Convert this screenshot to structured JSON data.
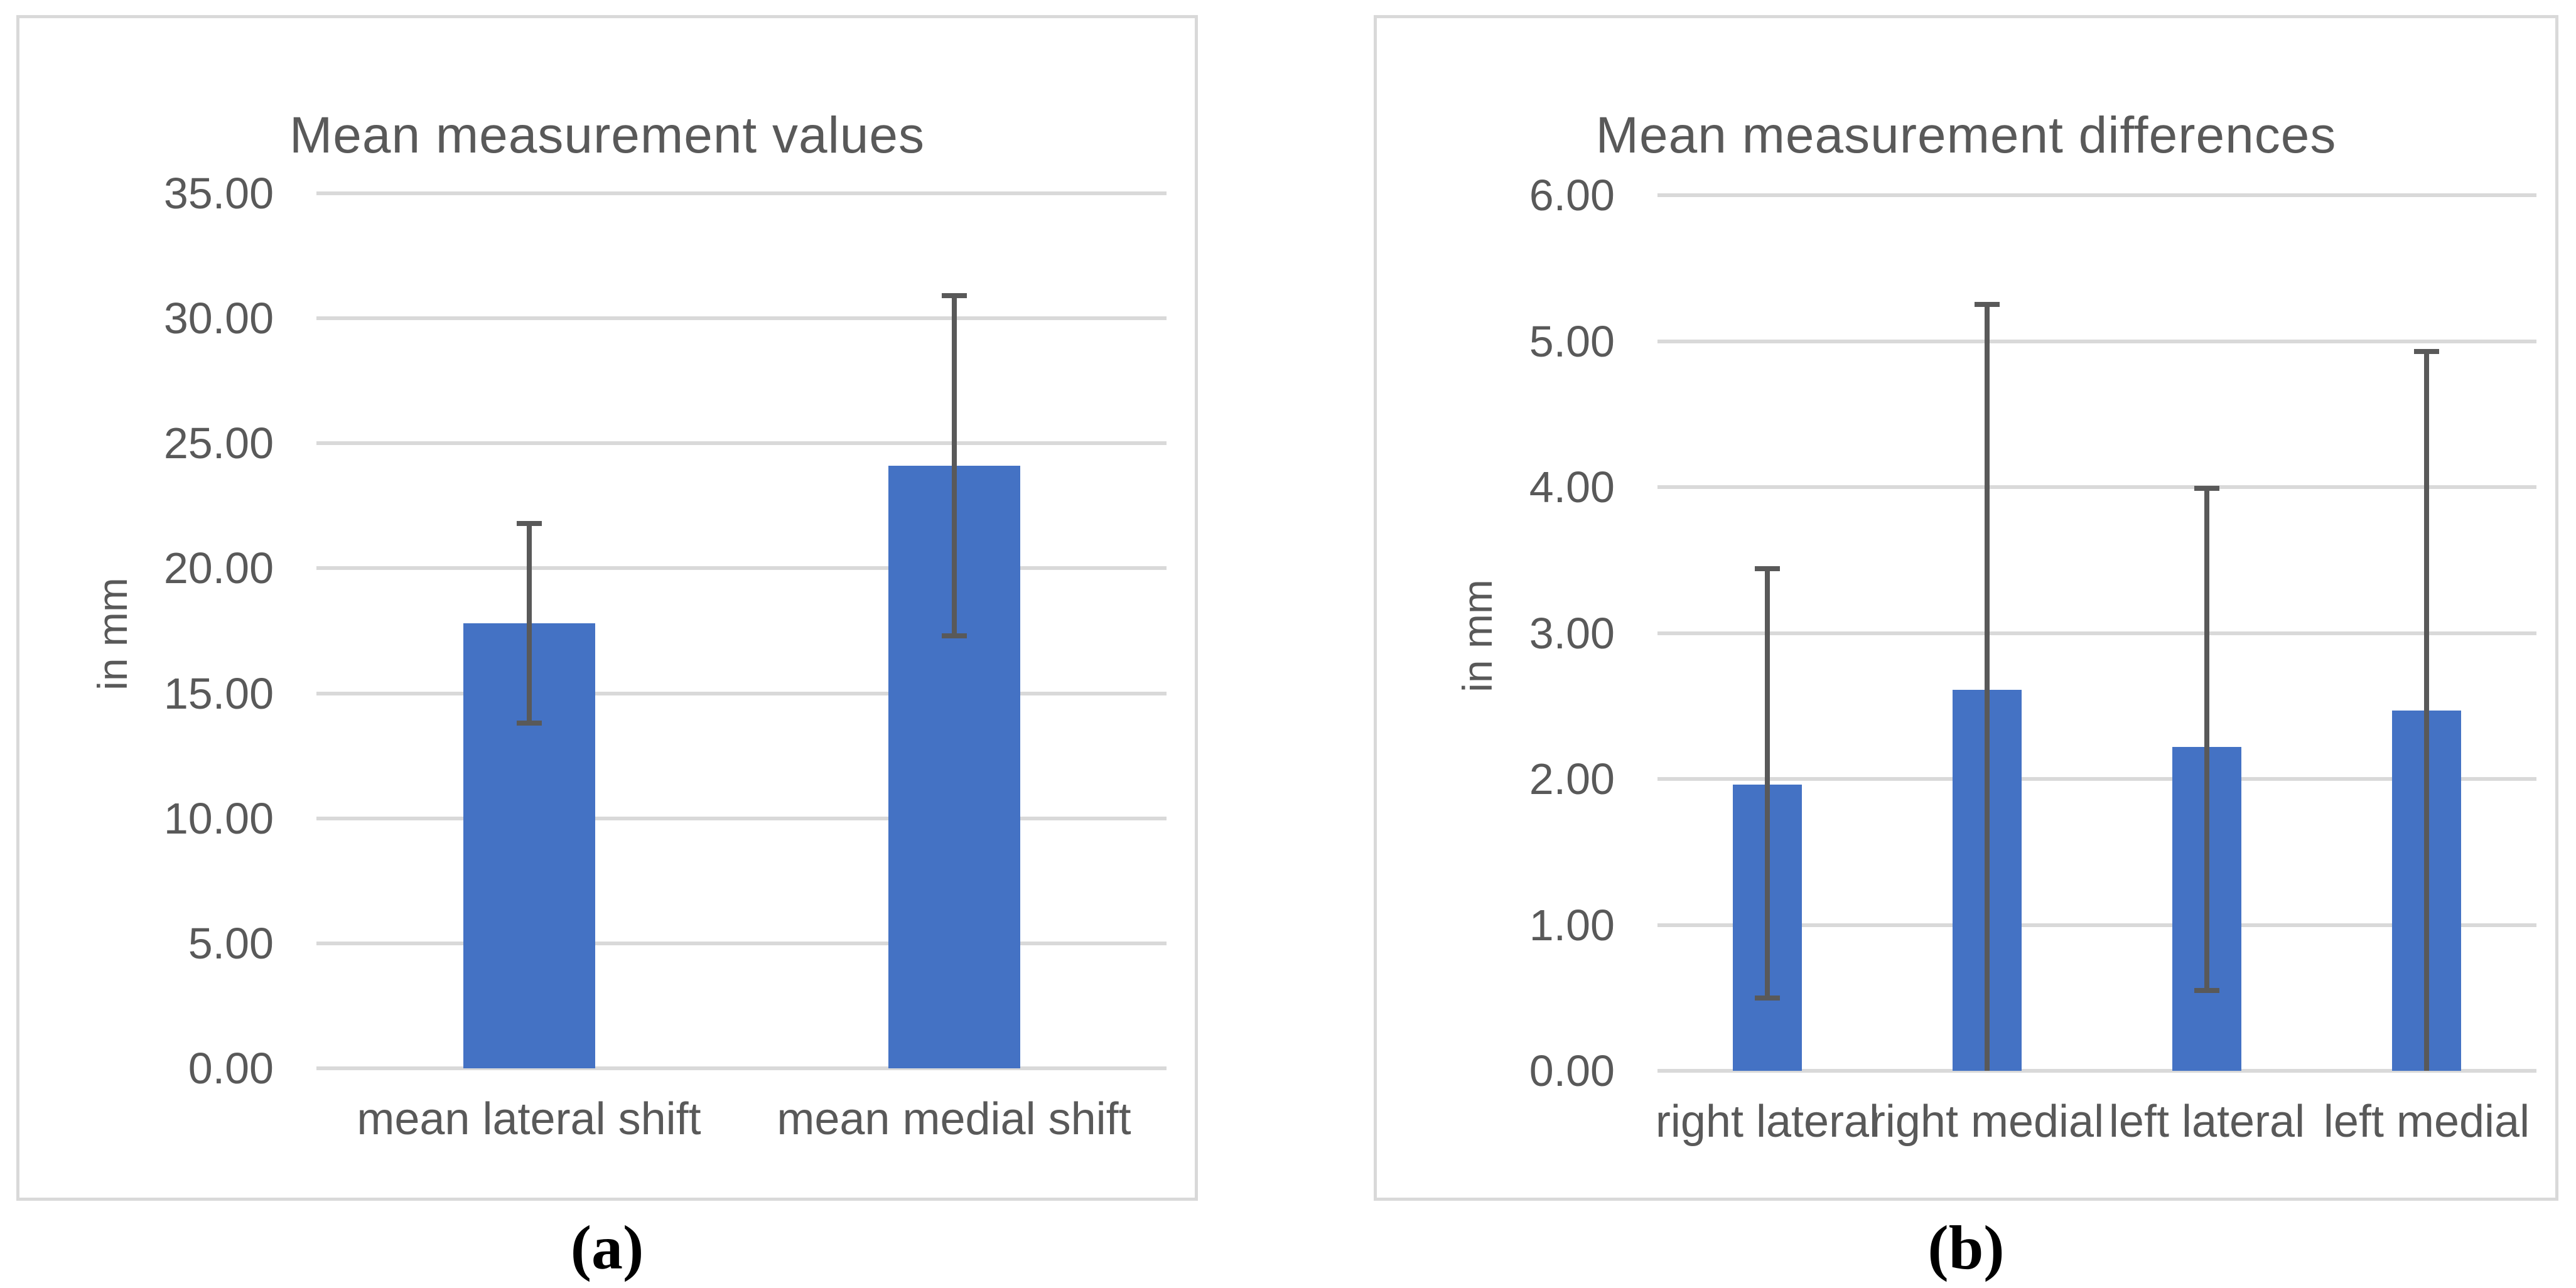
{
  "captions": {
    "a": "(a)",
    "b": "(b)"
  },
  "colors": {
    "bar_fill": "#4472C4",
    "error_bar": "#595959",
    "gridline": "#D9D9D9",
    "panel_border": "#D9D9D9",
    "axis_text": "#595959",
    "caption_text": "#000000"
  },
  "chart_data": [
    {
      "type": "bar",
      "title": "Mean measurement values",
      "xlabel": "",
      "ylabel": "in mm",
      "ylim": [
        0,
        35
      ],
      "yticks": [
        "0.00",
        "5.00",
        "10.00",
        "15.00",
        "20.00",
        "25.00",
        "30.00",
        "35.00"
      ],
      "grid": true,
      "legend": "none",
      "categories": [
        "mean lateral shift",
        "mean medial shift"
      ],
      "values": [
        17.8,
        24.1
      ],
      "error_low": [
        13.8,
        17.3
      ],
      "error_high": [
        21.8,
        30.9
      ],
      "bar_color": "#4472C4",
      "error_color": "#595959"
    },
    {
      "type": "bar",
      "title": "Mean measurement differences",
      "xlabel": "",
      "ylabel": "in mm",
      "ylim": [
        0,
        6
      ],
      "yticks": [
        "0.00",
        "1.00",
        "2.00",
        "3.00",
        "4.00",
        "5.00",
        "6.00"
      ],
      "grid": true,
      "legend": "none",
      "categories": [
        "right lateral",
        "right medial",
        "left lateral",
        "left medial"
      ],
      "values": [
        1.96,
        2.61,
        2.22,
        2.47
      ],
      "error_low": [
        0.5,
        0.0,
        0.55,
        0.0
      ],
      "error_high": [
        3.44,
        5.25,
        3.99,
        4.93
      ],
      "bar_color": "#4472C4",
      "error_color": "#595959"
    }
  ]
}
